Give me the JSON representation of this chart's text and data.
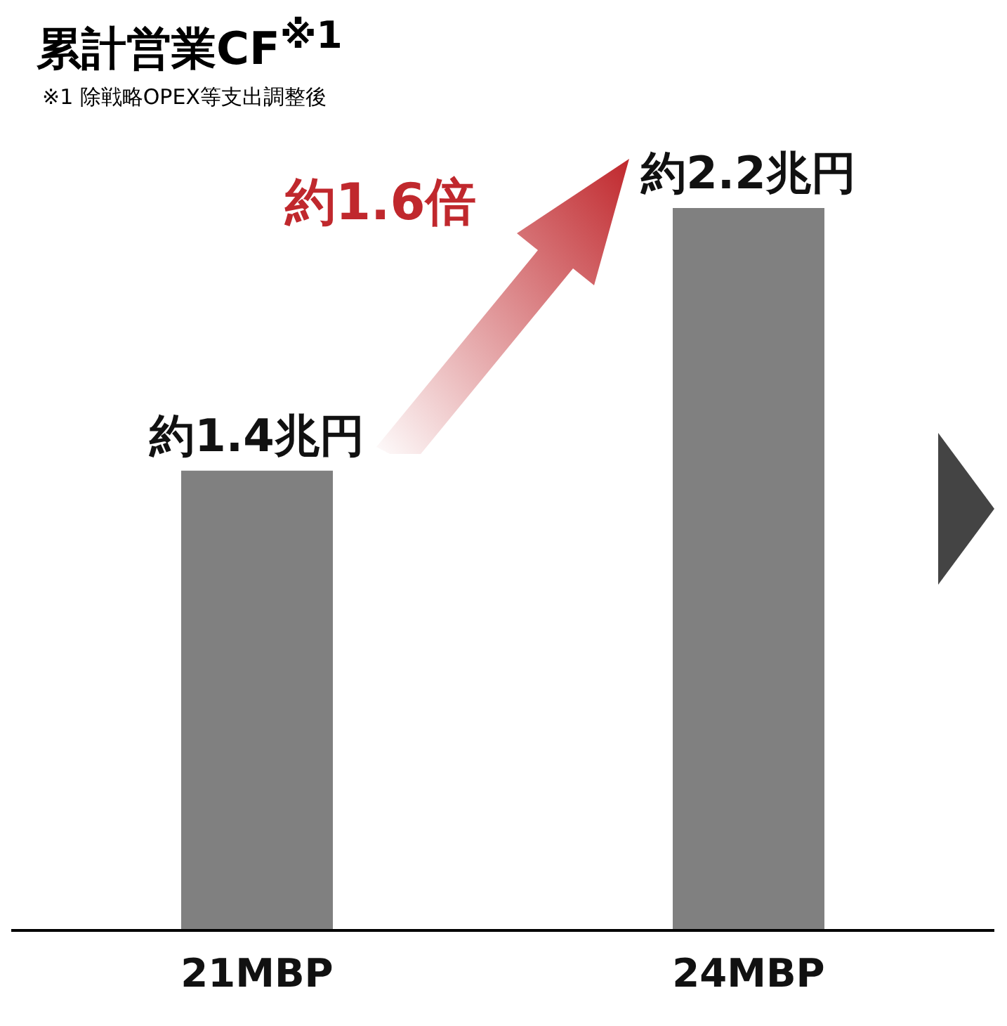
{
  "chart_data": {
    "type": "bar",
    "title": "累計営業CF$^{※1}$",
    "categories": [
      "21MBP",
      "24MBP"
    ],
    "values": [
      1.4,
      2.2
    ],
    "color": "#808080",
    "value_labels": [
      "約1.4兆円",
      "約2.2兆円"
    ],
    "tick_labels": "x",
    "grid": false,
    "legend": false,
    "annotations": [
      "※1 除戦略OPEX等支出調整後",
      "約1.6倍"
    ]
  }
}
